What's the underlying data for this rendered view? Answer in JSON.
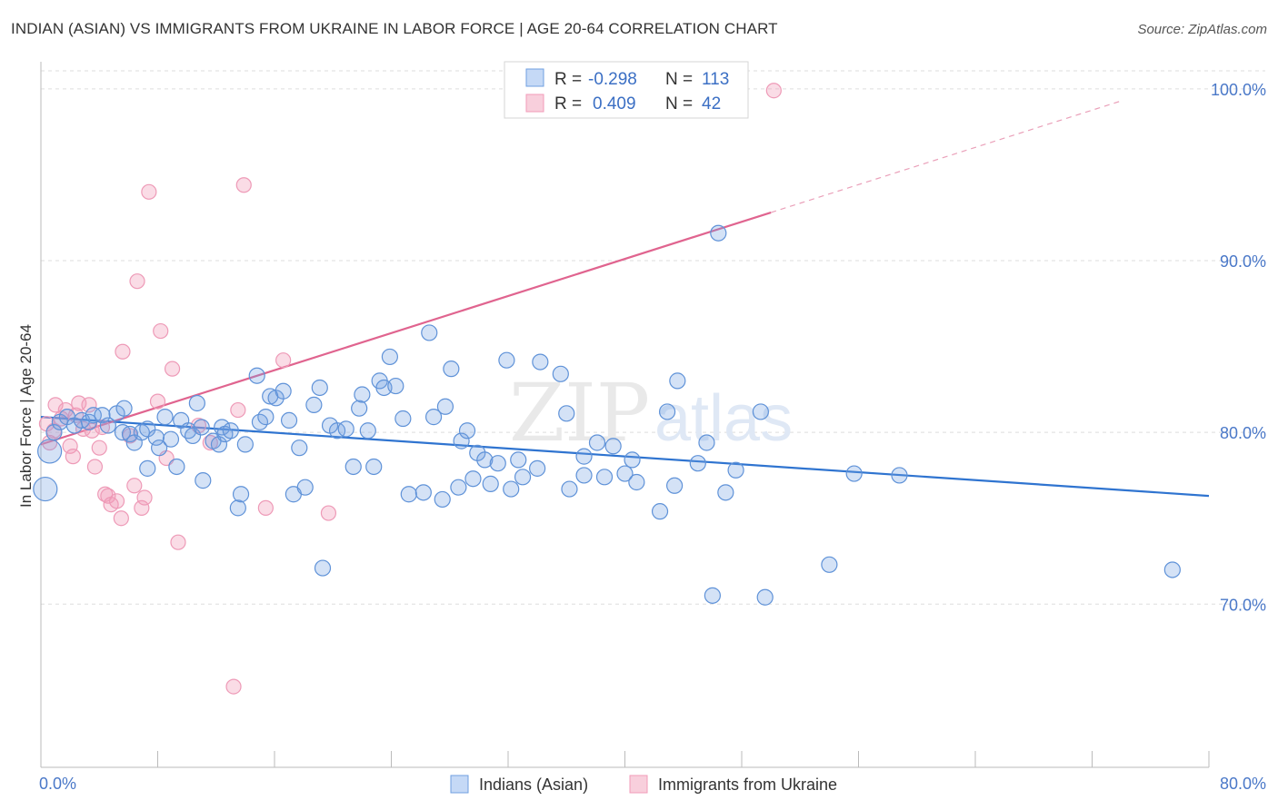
{
  "header": {
    "title": "INDIAN (ASIAN) VS IMMIGRANTS FROM UKRAINE IN LABOR FORCE | AGE 20-64 CORRELATION CHART",
    "source": "Source: ZipAtlas.com"
  },
  "watermark": {
    "zip": "ZIP",
    "atlas": "atlas"
  },
  "stats_box": {
    "r_label": "R =",
    "n_label": "N =",
    "rows": [
      {
        "series": "Indians (Asian)",
        "r": "-0.298",
        "n": "113"
      },
      {
        "series": "Immigrants from Ukraine",
        "r": "0.409",
        "n": "42"
      }
    ]
  },
  "chart_data": {
    "type": "scatter",
    "title": "INDIAN (ASIAN) VS IMMIGRANTS FROM UKRAINE IN LABOR FORCE | AGE 20-64 CORRELATION CHART",
    "xlabel": "",
    "ylabel": "In Labor Force | Age 20-64",
    "xlim": [
      0,
      80
    ],
    "ylim": [
      60.5,
      102
    ],
    "x_tick_labels": [
      "0.0%",
      "80.0%"
    ],
    "y_ticks": [
      70,
      80,
      90,
      100
    ],
    "y_tick_labels": [
      "70.0%",
      "80.0%",
      "90.0%",
      "100.0%"
    ],
    "grid": true,
    "legend_position": "bottom-center",
    "series": [
      {
        "name": "Indians (Asian)",
        "color": "#6f9fe0",
        "trend": {
          "x": [
            0,
            80
          ],
          "y": [
            80.9,
            76.3
          ]
        },
        "points": [
          {
            "x": 0.3,
            "y": 76.7,
            "big": true
          },
          {
            "x": 0.6,
            "y": 78.9,
            "big": true
          },
          {
            "x": 0.9,
            "y": 80.0
          },
          {
            "x": 1.3,
            "y": 80.6
          },
          {
            "x": 1.8,
            "y": 80.9
          },
          {
            "x": 2.3,
            "y": 80.4
          },
          {
            "x": 2.8,
            "y": 80.7
          },
          {
            "x": 3.3,
            "y": 80.6
          },
          {
            "x": 3.6,
            "y": 81.0
          },
          {
            "x": 4.2,
            "y": 81.0
          },
          {
            "x": 4.6,
            "y": 80.4
          },
          {
            "x": 5.2,
            "y": 81.1
          },
          {
            "x": 5.6,
            "y": 80.0
          },
          {
            "x": 5.7,
            "y": 81.4
          },
          {
            "x": 6.1,
            "y": 79.9
          },
          {
            "x": 6.4,
            "y": 79.4
          },
          {
            "x": 6.9,
            "y": 80.0
          },
          {
            "x": 7.3,
            "y": 80.2
          },
          {
            "x": 7.3,
            "y": 77.9
          },
          {
            "x": 7.9,
            "y": 79.7
          },
          {
            "x": 8.1,
            "y": 79.1
          },
          {
            "x": 8.5,
            "y": 80.9
          },
          {
            "x": 8.9,
            "y": 79.6
          },
          {
            "x": 9.3,
            "y": 78.0
          },
          {
            "x": 9.6,
            "y": 80.7
          },
          {
            "x": 10.1,
            "y": 80.1
          },
          {
            "x": 10.4,
            "y": 79.8
          },
          {
            "x": 10.7,
            "y": 81.7
          },
          {
            "x": 11.0,
            "y": 80.3
          },
          {
            "x": 11.1,
            "y": 77.2
          },
          {
            "x": 11.8,
            "y": 79.5
          },
          {
            "x": 12.2,
            "y": 79.3
          },
          {
            "x": 12.4,
            "y": 80.3
          },
          {
            "x": 12.6,
            "y": 79.9
          },
          {
            "x": 13.0,
            "y": 80.1
          },
          {
            "x": 13.5,
            "y": 75.6
          },
          {
            "x": 13.7,
            "y": 76.4
          },
          {
            "x": 14.0,
            "y": 79.3
          },
          {
            "x": 14.8,
            "y": 83.3
          },
          {
            "x": 15.0,
            "y": 80.6
          },
          {
            "x": 15.4,
            "y": 80.9
          },
          {
            "x": 15.7,
            "y": 82.1
          },
          {
            "x": 16.1,
            "y": 82.0
          },
          {
            "x": 16.6,
            "y": 82.4
          },
          {
            "x": 17.0,
            "y": 80.7
          },
          {
            "x": 17.3,
            "y": 76.4
          },
          {
            "x": 17.7,
            "y": 79.1
          },
          {
            "x": 18.1,
            "y": 76.8
          },
          {
            "x": 18.7,
            "y": 81.6
          },
          {
            "x": 19.1,
            "y": 82.6
          },
          {
            "x": 19.3,
            "y": 72.1
          },
          {
            "x": 19.8,
            "y": 80.4
          },
          {
            "x": 20.3,
            "y": 80.1
          },
          {
            "x": 20.9,
            "y": 80.2
          },
          {
            "x": 21.4,
            "y": 78.0
          },
          {
            "x": 21.8,
            "y": 81.4
          },
          {
            "x": 22.0,
            "y": 82.2
          },
          {
            "x": 22.4,
            "y": 80.1
          },
          {
            "x": 22.8,
            "y": 78.0
          },
          {
            "x": 23.2,
            "y": 83.0
          },
          {
            "x": 23.5,
            "y": 82.6
          },
          {
            "x": 23.9,
            "y": 84.4
          },
          {
            "x": 24.3,
            "y": 82.7
          },
          {
            "x": 24.8,
            "y": 80.8
          },
          {
            "x": 25.2,
            "y": 76.4
          },
          {
            "x": 26.2,
            "y": 76.5
          },
          {
            "x": 26.6,
            "y": 85.8
          },
          {
            "x": 26.9,
            "y": 80.9
          },
          {
            "x": 27.5,
            "y": 76.1
          },
          {
            "x": 27.7,
            "y": 81.5
          },
          {
            "x": 28.1,
            "y": 83.7
          },
          {
            "x": 28.6,
            "y": 76.8
          },
          {
            "x": 28.8,
            "y": 79.5
          },
          {
            "x": 29.2,
            "y": 80.1
          },
          {
            "x": 29.6,
            "y": 77.3
          },
          {
            "x": 29.9,
            "y": 78.8
          },
          {
            "x": 30.4,
            "y": 78.4
          },
          {
            "x": 30.8,
            "y": 77.0
          },
          {
            "x": 31.3,
            "y": 78.2
          },
          {
            "x": 31.9,
            "y": 84.2
          },
          {
            "x": 32.2,
            "y": 76.7
          },
          {
            "x": 32.7,
            "y": 78.4
          },
          {
            "x": 33.0,
            "y": 77.4
          },
          {
            "x": 34.0,
            "y": 77.9
          },
          {
            "x": 34.2,
            "y": 84.1
          },
          {
            "x": 35.6,
            "y": 83.4
          },
          {
            "x": 36.0,
            "y": 81.1
          },
          {
            "x": 36.2,
            "y": 76.7
          },
          {
            "x": 37.2,
            "y": 78.6
          },
          {
            "x": 37.2,
            "y": 77.5
          },
          {
            "x": 38.1,
            "y": 79.4
          },
          {
            "x": 38.6,
            "y": 77.4
          },
          {
            "x": 39.2,
            "y": 79.2
          },
          {
            "x": 40.0,
            "y": 77.6
          },
          {
            "x": 40.5,
            "y": 78.4
          },
          {
            "x": 40.8,
            "y": 77.1
          },
          {
            "x": 42.4,
            "y": 75.4
          },
          {
            "x": 42.9,
            "y": 81.2
          },
          {
            "x": 43.4,
            "y": 76.9
          },
          {
            "x": 43.6,
            "y": 83.0
          },
          {
            "x": 45.0,
            "y": 78.2
          },
          {
            "x": 45.6,
            "y": 79.4
          },
          {
            "x": 46.0,
            "y": 70.5
          },
          {
            "x": 46.4,
            "y": 91.6
          },
          {
            "x": 46.9,
            "y": 76.5
          },
          {
            "x": 47.6,
            "y": 77.8
          },
          {
            "x": 49.3,
            "y": 81.2
          },
          {
            "x": 49.6,
            "y": 70.4
          },
          {
            "x": 54.0,
            "y": 72.3
          },
          {
            "x": 55.7,
            "y": 77.6
          },
          {
            "x": 58.8,
            "y": 77.5
          },
          {
            "x": 77.5,
            "y": 72.0
          }
        ]
      },
      {
        "name": "Immigrants from Ukraine",
        "color": "#f29bb8",
        "trend": {
          "x": [
            0,
            50
          ],
          "y": [
            79.3,
            92.8
          ]
        },
        "trend_ext": {
          "x": [
            50,
            74
          ],
          "y": [
            92.8,
            99.3
          ]
        },
        "points": [
          {
            "x": 0.4,
            "y": 80.5
          },
          {
            "x": 0.6,
            "y": 79.4
          },
          {
            "x": 0.9,
            "y": 80.1
          },
          {
            "x": 1.0,
            "y": 81.6
          },
          {
            "x": 1.4,
            "y": 80.8
          },
          {
            "x": 1.7,
            "y": 81.3
          },
          {
            "x": 2.0,
            "y": 79.2
          },
          {
            "x": 2.2,
            "y": 78.6
          },
          {
            "x": 2.4,
            "y": 81.0
          },
          {
            "x": 2.6,
            "y": 81.7
          },
          {
            "x": 2.9,
            "y": 80.2
          },
          {
            "x": 3.3,
            "y": 81.6
          },
          {
            "x": 3.5,
            "y": 80.1
          },
          {
            "x": 3.7,
            "y": 78.0
          },
          {
            "x": 4.0,
            "y": 79.1
          },
          {
            "x": 4.2,
            "y": 80.3
          },
          {
            "x": 4.4,
            "y": 76.4
          },
          {
            "x": 4.6,
            "y": 76.3
          },
          {
            "x": 4.8,
            "y": 75.8
          },
          {
            "x": 5.2,
            "y": 76.0
          },
          {
            "x": 5.5,
            "y": 75.0
          },
          {
            "x": 5.6,
            "y": 84.7
          },
          {
            "x": 6.1,
            "y": 79.8
          },
          {
            "x": 6.4,
            "y": 76.9
          },
          {
            "x": 6.6,
            "y": 88.8
          },
          {
            "x": 6.9,
            "y": 75.6
          },
          {
            "x": 7.1,
            "y": 76.2
          },
          {
            "x": 7.4,
            "y": 94.0
          },
          {
            "x": 8.0,
            "y": 81.8
          },
          {
            "x": 8.2,
            "y": 85.9
          },
          {
            "x": 8.6,
            "y": 78.5
          },
          {
            "x": 9.0,
            "y": 83.7
          },
          {
            "x": 9.4,
            "y": 73.6
          },
          {
            "x": 10.8,
            "y": 80.4
          },
          {
            "x": 11.6,
            "y": 79.4
          },
          {
            "x": 13.2,
            "y": 65.2
          },
          {
            "x": 13.5,
            "y": 81.3
          },
          {
            "x": 13.9,
            "y": 94.4
          },
          {
            "x": 15.4,
            "y": 75.6
          },
          {
            "x": 16.6,
            "y": 84.2
          },
          {
            "x": 19.7,
            "y": 75.3
          },
          {
            "x": 50.2,
            "y": 99.9
          }
        ]
      }
    ]
  }
}
